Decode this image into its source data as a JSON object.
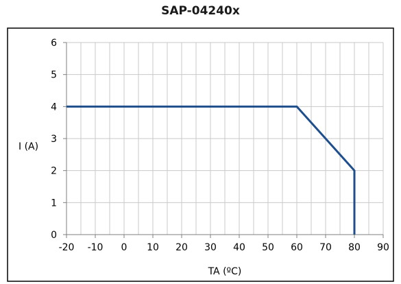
{
  "chart_data": {
    "type": "line",
    "title": "SAP-04240x",
    "xlabel": "TA (ºC)",
    "ylabel": "I (A)",
    "xlim": [
      -20,
      90
    ],
    "ylim": [
      0,
      6
    ],
    "x_ticks": [
      -20,
      -10,
      0,
      10,
      20,
      30,
      40,
      50,
      60,
      70,
      80,
      90
    ],
    "x_minor_step": 5,
    "y_ticks": [
      0,
      1,
      2,
      3,
      4,
      5,
      6
    ],
    "grid": true,
    "legend": "none",
    "series": [
      {
        "color": "#1f4e8c",
        "points": [
          {
            "x": -20,
            "y": 4
          },
          {
            "x": 60,
            "y": 4
          },
          {
            "x": 80,
            "y": 2
          },
          {
            "x": 80,
            "y": 0
          }
        ]
      }
    ]
  }
}
